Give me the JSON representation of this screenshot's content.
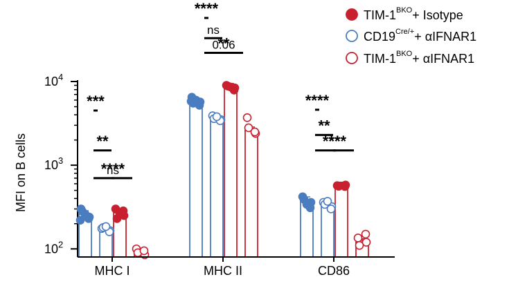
{
  "chart_data": {
    "type": "bar",
    "ylabel": "MFI on B cells",
    "yscale": "log",
    "ylim": [
      80,
      10000
    ],
    "y_ticks": [
      {
        "value": 100,
        "base": "10",
        "exp": "2"
      },
      {
        "value": 1000,
        "base": "10",
        "exp": "3"
      },
      {
        "value": 10000,
        "base": "10",
        "exp": "4"
      }
    ],
    "categories": [
      "MHC I",
      "MHC II",
      "CD86"
    ],
    "legend_position": "top-right",
    "series": [
      {
        "legend": {
          "prefix": "TIM-1",
          "sup": "BKO",
          "suffix": "+ Isotype"
        },
        "style": "filled",
        "color": "#c8202e",
        "values": [
          270,
          8600,
          570
        ],
        "points": [
          [
            300,
            250,
            230,
            285,
            260
          ],
          [
            9000,
            8400,
            8800,
            7900,
            8600
          ],
          [
            570,
            580,
            560,
            555
          ]
        ]
      },
      {
        "legend": {
          "prefix": "CD19",
          "sup": "Cre/+",
          "suffix": "+ αIFNAR1"
        },
        "style": "open",
        "color": "#4a7cc0",
        "values": [
          175,
          3700,
          340
        ],
        "points": [
          [
            175,
            165,
            180,
            160,
            185
          ],
          [
            3900,
            3500,
            3600,
            3400,
            3800
          ],
          [
            360,
            320,
            340,
            300,
            370
          ]
        ]
      },
      {
        "legend": {
          "prefix": "TIM-1",
          "sup": "BKO",
          "suffix": "+ αIFNAR1"
        },
        "style": "open",
        "color": "#c8202e",
        "values": [
          90,
          2600,
          120
        ],
        "points": [
          [
            100,
            85,
            90,
            95
          ],
          [
            3700,
            2400,
            2800,
            2500
          ],
          [
            135,
            120,
            110,
            150
          ]
        ]
      },
      {
        "legend": null,
        "style": "filled",
        "color": "#4a7cc0",
        "values": [
          260,
          5800,
          380
        ],
        "points": [
          [
            300,
            240,
            280,
            230,
            260,
            220
          ],
          [
            6500,
            5700,
            5500,
            5200,
            6000,
            5800
          ],
          [
            420,
            360,
            390,
            310,
            340
          ]
        ]
      }
    ],
    "annotations": [
      {
        "label": "ns",
        "group": 0,
        "from": 0,
        "to": 1,
        "y": 700
      },
      {
        "label": "**",
        "group": 0,
        "from": 0,
        "to": 3,
        "y": 1500
      },
      {
        "label": "***",
        "group": 0,
        "from": 1,
        "to": 3,
        "y": 4500
      },
      {
        "label": "****",
        "group": 0,
        "from": 2,
        "to": 3,
        "y": 700
      },
      {
        "label": "ns",
        "group": 1,
        "from": 0,
        "to": 3,
        "y": 33000
      },
      {
        "label": "**",
        "group": 1,
        "from": 0,
        "to": 1,
        "y": 22000
      },
      {
        "label": "0.06",
        "group": 1,
        "from": 2,
        "to": 3,
        "y": 22000
      },
      {
        "label": "****",
        "group": 1,
        "from": 1,
        "to": 3,
        "y": 80000
      },
      {
        "label": "**",
        "group": 2,
        "from": 0,
        "to": 3,
        "y": 2300
      },
      {
        "label": "****",
        "group": 2,
        "from": 1,
        "to": 3,
        "y": 4600
      },
      {
        "label": "**",
        "group": 2,
        "from": 0,
        "to": 1,
        "y": 1500
      },
      {
        "label": "****",
        "group": 2,
        "from": 2,
        "to": 3,
        "y": 1500
      }
    ]
  }
}
